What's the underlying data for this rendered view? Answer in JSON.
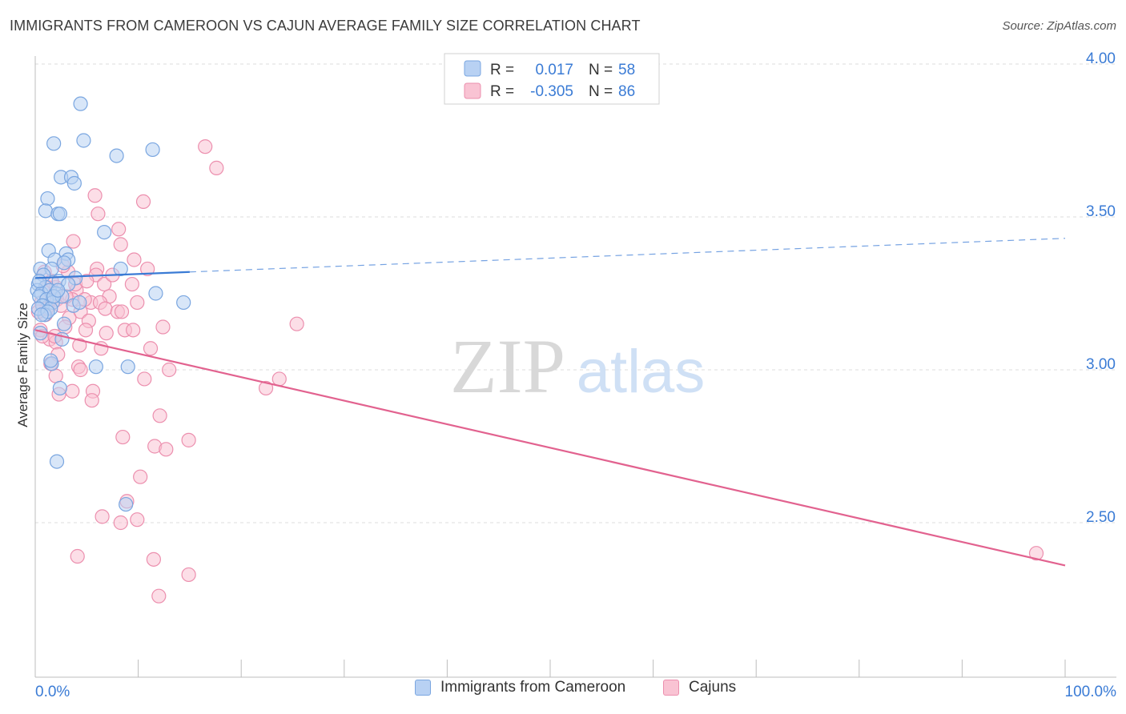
{
  "header": {
    "title": "IMMIGRANTS FROM CAMEROON VS CAJUN AVERAGE FAMILY SIZE CORRELATION CHART",
    "source": "Source: ZipAtlas.com"
  },
  "watermark": {
    "zip": "ZIP",
    "atlas": "atlas"
  },
  "colors": {
    "blue_fill": "#b8d1f3",
    "blue_stroke": "#7aa6e0",
    "blue_line": "#3a7bd5",
    "pink_fill": "#f9c3d3",
    "pink_stroke": "#ec8fae",
    "pink_line": "#e2628f",
    "axis_text": "#3a7bd5",
    "grid": "#dcdcdc"
  },
  "stats_legend": {
    "rows": [
      {
        "r_label": "R =",
        "r_value": "0.017",
        "n_label": "N =",
        "n_value": "58"
      },
      {
        "r_label": "R =",
        "r_value": "-0.305",
        "n_label": "N =",
        "n_value": "86"
      }
    ]
  },
  "bottom_legend": {
    "items": [
      {
        "label": "Immigrants from Cameroon"
      },
      {
        "label": "Cajuns"
      }
    ]
  },
  "chart_data": {
    "type": "scatter",
    "title": "IMMIGRANTS FROM CAMEROON VS CAJUN AVERAGE FAMILY SIZE CORRELATION CHART",
    "xlabel": "",
    "ylabel": "Average Family Size",
    "xlim": [
      0,
      100
    ],
    "ylim": [
      2.0,
      4.08
    ],
    "x_tick_labels": {
      "min": "0.0%",
      "max": "100.0%"
    },
    "y_ticks": [
      {
        "value": 2.5,
        "label": "2.50"
      },
      {
        "value": 3.0,
        "label": "3.00"
      },
      {
        "value": 3.5,
        "label": "3.50"
      },
      {
        "value": 4.0,
        "label": "4.00"
      }
    ],
    "grid": true,
    "series": [
      {
        "name": "Immigrants from Cameroon",
        "color": "blue",
        "trend": {
          "x": [
            0,
            15
          ],
          "y": [
            3.3,
            3.32
          ],
          "dashed_extension_to": [
            100,
            3.43
          ]
        },
        "points": [
          [
            4.4,
            3.87
          ],
          [
            1.8,
            3.74
          ],
          [
            4.7,
            3.75
          ],
          [
            7.9,
            3.7
          ],
          [
            11.4,
            3.72
          ],
          [
            2.5,
            3.63
          ],
          [
            3.5,
            3.63
          ],
          [
            3.8,
            3.61
          ],
          [
            1.2,
            3.56
          ],
          [
            1.0,
            3.52
          ],
          [
            2.2,
            3.51
          ],
          [
            2.4,
            3.51
          ],
          [
            6.7,
            3.45
          ],
          [
            1.3,
            3.39
          ],
          [
            3.0,
            3.38
          ],
          [
            1.9,
            3.36
          ],
          [
            3.2,
            3.36
          ],
          [
            2.8,
            3.35
          ],
          [
            0.5,
            3.33
          ],
          [
            1.6,
            3.33
          ],
          [
            8.3,
            3.33
          ],
          [
            0.8,
            3.31
          ],
          [
            3.9,
            3.3
          ],
          [
            0.3,
            3.28
          ],
          [
            1.0,
            3.27
          ],
          [
            2.3,
            3.29
          ],
          [
            0.2,
            3.26
          ],
          [
            0.6,
            3.25
          ],
          [
            1.4,
            3.26
          ],
          [
            2.0,
            3.25
          ],
          [
            0.4,
            3.24
          ],
          [
            1.1,
            3.23
          ],
          [
            1.7,
            3.22
          ],
          [
            2.6,
            3.24
          ],
          [
            11.7,
            3.25
          ],
          [
            0.7,
            3.21
          ],
          [
            1.5,
            3.2
          ],
          [
            3.7,
            3.21
          ],
          [
            4.3,
            3.22
          ],
          [
            14.4,
            3.22
          ],
          [
            0.9,
            3.18
          ],
          [
            0.3,
            3.2
          ],
          [
            1.2,
            3.19
          ],
          [
            2.8,
            3.15
          ],
          [
            2.6,
            3.1
          ],
          [
            0.5,
            3.12
          ],
          [
            1.6,
            3.02
          ],
          [
            1.5,
            3.03
          ],
          [
            5.9,
            3.01
          ],
          [
            9.0,
            3.01
          ],
          [
            2.4,
            2.94
          ],
          [
            2.1,
            2.7
          ],
          [
            8.8,
            2.56
          ],
          [
            3.2,
            3.28
          ],
          [
            0.4,
            3.29
          ],
          [
            1.8,
            3.24
          ],
          [
            0.6,
            3.18
          ],
          [
            2.2,
            3.26
          ]
        ]
      },
      {
        "name": "Cajuns",
        "color": "pink",
        "trend": {
          "x": [
            0,
            100
          ],
          "y": [
            3.13,
            2.36
          ]
        },
        "points": [
          [
            16.5,
            3.73
          ],
          [
            17.6,
            3.66
          ],
          [
            5.8,
            3.57
          ],
          [
            10.5,
            3.55
          ],
          [
            6.1,
            3.51
          ],
          [
            8.1,
            3.46
          ],
          [
            3.7,
            3.42
          ],
          [
            8.3,
            3.41
          ],
          [
            9.6,
            3.36
          ],
          [
            6.0,
            3.33
          ],
          [
            3.2,
            3.32
          ],
          [
            0.9,
            3.32
          ],
          [
            5.9,
            3.31
          ],
          [
            1.2,
            3.27
          ],
          [
            9.4,
            3.28
          ],
          [
            6.7,
            3.28
          ],
          [
            2.0,
            3.27
          ],
          [
            4.0,
            3.26
          ],
          [
            7.2,
            3.24
          ],
          [
            3.6,
            3.23
          ],
          [
            5.4,
            3.22
          ],
          [
            6.3,
            3.22
          ],
          [
            2.1,
            3.23
          ],
          [
            9.9,
            3.22
          ],
          [
            0.6,
            3.22
          ],
          [
            2.5,
            3.21
          ],
          [
            4.4,
            3.19
          ],
          [
            6.8,
            3.2
          ],
          [
            8.0,
            3.19
          ],
          [
            8.4,
            3.19
          ],
          [
            1.0,
            3.18
          ],
          [
            3.3,
            3.17
          ],
          [
            5.2,
            3.16
          ],
          [
            2.9,
            3.14
          ],
          [
            12.4,
            3.14
          ],
          [
            25.4,
            3.15
          ],
          [
            0.5,
            3.13
          ],
          [
            4.9,
            3.13
          ],
          [
            8.7,
            3.13
          ],
          [
            9.5,
            3.13
          ],
          [
            1.4,
            3.1
          ],
          [
            2.0,
            3.09
          ],
          [
            0.7,
            3.11
          ],
          [
            4.3,
            3.08
          ],
          [
            6.4,
            3.07
          ],
          [
            11.2,
            3.07
          ],
          [
            2.2,
            3.05
          ],
          [
            1.5,
            3.02
          ],
          [
            4.2,
            3.01
          ],
          [
            13.0,
            3.0
          ],
          [
            4.4,
            3.0
          ],
          [
            2.0,
            2.98
          ],
          [
            10.6,
            2.97
          ],
          [
            23.7,
            2.97
          ],
          [
            22.4,
            2.94
          ],
          [
            3.6,
            2.93
          ],
          [
            5.6,
            2.93
          ],
          [
            2.3,
            2.92
          ],
          [
            5.5,
            2.9
          ],
          [
            12.1,
            2.85
          ],
          [
            8.5,
            2.78
          ],
          [
            14.9,
            2.77
          ],
          [
            11.6,
            2.75
          ],
          [
            12.7,
            2.74
          ],
          [
            10.2,
            2.65
          ],
          [
            8.9,
            2.57
          ],
          [
            6.5,
            2.52
          ],
          [
            9.9,
            2.51
          ],
          [
            8.3,
            2.5
          ],
          [
            4.1,
            2.39
          ],
          [
            11.5,
            2.38
          ],
          [
            14.9,
            2.33
          ],
          [
            12.0,
            2.26
          ],
          [
            97.2,
            2.4
          ],
          [
            1.1,
            3.2
          ],
          [
            3.0,
            3.24
          ],
          [
            4.8,
            3.23
          ],
          [
            1.9,
            3.11
          ],
          [
            0.3,
            3.19
          ],
          [
            3.9,
            3.28
          ],
          [
            6.9,
            3.12
          ],
          [
            5.0,
            3.29
          ],
          [
            2.7,
            3.34
          ],
          [
            7.5,
            3.31
          ],
          [
            1.6,
            3.29
          ],
          [
            10.9,
            3.33
          ]
        ]
      }
    ]
  }
}
